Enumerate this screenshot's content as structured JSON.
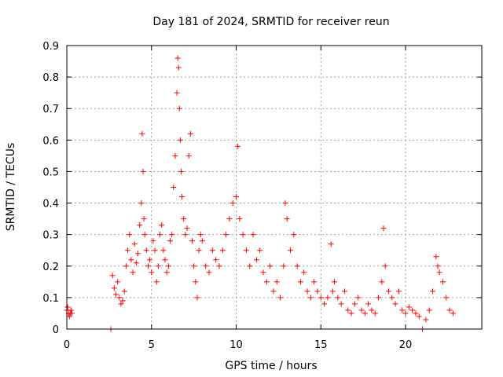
{
  "chart_data": {
    "type": "scatter",
    "title": "Day 181 of 2024, SRMTID for receiver reun",
    "xlabel": "GPS time / hours",
    "ylabel": "SRMTID / TECUs",
    "xlim": [
      0,
      24.5
    ],
    "ylim": [
      0,
      0.9
    ],
    "grid": true,
    "marker": "+",
    "color": "#ff0000",
    "x_ticks": [
      0,
      5,
      10,
      15,
      20
    ],
    "x_tick_labels": [
      "0",
      "5",
      "10",
      "15",
      "20"
    ],
    "y_ticks": [
      0,
      0.1,
      0.2,
      0.3,
      0.4,
      0.5,
      0.6,
      0.7,
      0.8,
      0.9
    ],
    "y_tick_labels": [
      "0",
      "0.1",
      "0.2",
      "0.3",
      "0.4",
      "0.5",
      "0.6",
      "0.7",
      "0.8",
      "0.9"
    ],
    "series": [
      {
        "name": "SRMTID",
        "x": [
          0.0,
          0.05,
          0.1,
          0.15,
          0.2,
          0.25,
          0.3,
          2.6,
          2.7,
          2.8,
          2.9,
          3.0,
          3.1,
          3.2,
          3.3,
          3.4,
          3.5,
          3.6,
          3.7,
          3.8,
          3.9,
          4.0,
          4.1,
          4.2,
          4.3,
          4.4,
          4.45,
          4.5,
          4.55,
          4.6,
          4.7,
          4.8,
          4.9,
          5.0,
          5.1,
          5.2,
          5.3,
          5.4,
          5.5,
          5.6,
          5.7,
          5.8,
          5.9,
          6.0,
          6.1,
          6.2,
          6.3,
          6.4,
          6.5,
          6.55,
          6.6,
          6.65,
          6.7,
          6.75,
          6.8,
          6.9,
          7.0,
          7.1,
          7.2,
          7.3,
          7.4,
          7.5,
          7.6,
          7.7,
          7.8,
          7.9,
          8.0,
          8.2,
          8.4,
          8.6,
          8.8,
          9.0,
          9.2,
          9.4,
          9.6,
          9.8,
          10.0,
          10.1,
          10.2,
          10.4,
          10.6,
          10.8,
          11.0,
          11.2,
          11.4,
          11.6,
          11.8,
          12.0,
          12.2,
          12.4,
          12.6,
          12.8,
          12.9,
          13.0,
          13.2,
          13.4,
          13.6,
          13.8,
          14.0,
          14.2,
          14.4,
          14.6,
          14.8,
          15.0,
          15.2,
          15.4,
          15.6,
          15.7,
          15.8,
          16.0,
          16.2,
          16.4,
          16.6,
          16.8,
          17.0,
          17.2,
          17.4,
          17.6,
          17.8,
          18.0,
          18.2,
          18.4,
          18.6,
          18.7,
          18.8,
          19.0,
          19.2,
          19.4,
          19.6,
          19.8,
          20.0,
          20.2,
          20.4,
          20.6,
          20.8,
          21.0,
          21.2,
          21.4,
          21.6,
          21.8,
          21.9,
          22.0,
          22.2,
          22.4,
          22.6,
          22.8
        ],
        "y": [
          0.06,
          0.07,
          0.05,
          0.04,
          0.05,
          0.06,
          0.05,
          0.0,
          0.17,
          0.13,
          0.11,
          0.15,
          0.1,
          0.08,
          0.09,
          0.12,
          0.2,
          0.25,
          0.3,
          0.22,
          0.18,
          0.27,
          0.21,
          0.24,
          0.33,
          0.4,
          0.62,
          0.5,
          0.35,
          0.3,
          0.25,
          0.2,
          0.22,
          0.18,
          0.28,
          0.25,
          0.15,
          0.2,
          0.3,
          0.33,
          0.25,
          0.22,
          0.18,
          0.2,
          0.28,
          0.3,
          0.45,
          0.55,
          0.75,
          0.86,
          0.83,
          0.7,
          0.6,
          0.5,
          0.42,
          0.35,
          0.3,
          0.32,
          0.55,
          0.62,
          0.28,
          0.2,
          0.15,
          0.1,
          0.25,
          0.3,
          0.28,
          0.2,
          0.18,
          0.25,
          0.22,
          0.2,
          0.25,
          0.3,
          0.35,
          0.4,
          0.42,
          0.58,
          0.35,
          0.3,
          0.25,
          0.2,
          0.3,
          0.22,
          0.25,
          0.18,
          0.15,
          0.2,
          0.12,
          0.15,
          0.1,
          0.2,
          0.4,
          0.35,
          0.25,
          0.3,
          0.2,
          0.15,
          0.18,
          0.12,
          0.1,
          0.15,
          0.12,
          0.1,
          0.08,
          0.1,
          0.27,
          0.12,
          0.15,
          0.1,
          0.08,
          0.12,
          0.06,
          0.05,
          0.08,
          0.1,
          0.06,
          0.05,
          0.08,
          0.06,
          0.05,
          0.1,
          0.15,
          0.32,
          0.2,
          0.12,
          0.1,
          0.08,
          0.12,
          0.06,
          0.05,
          0.07,
          0.06,
          0.05,
          0.04,
          0.0,
          0.03,
          0.06,
          0.12,
          0.23,
          0.2,
          0.18,
          0.15,
          0.1,
          0.06,
          0.05
        ]
      }
    ]
  }
}
